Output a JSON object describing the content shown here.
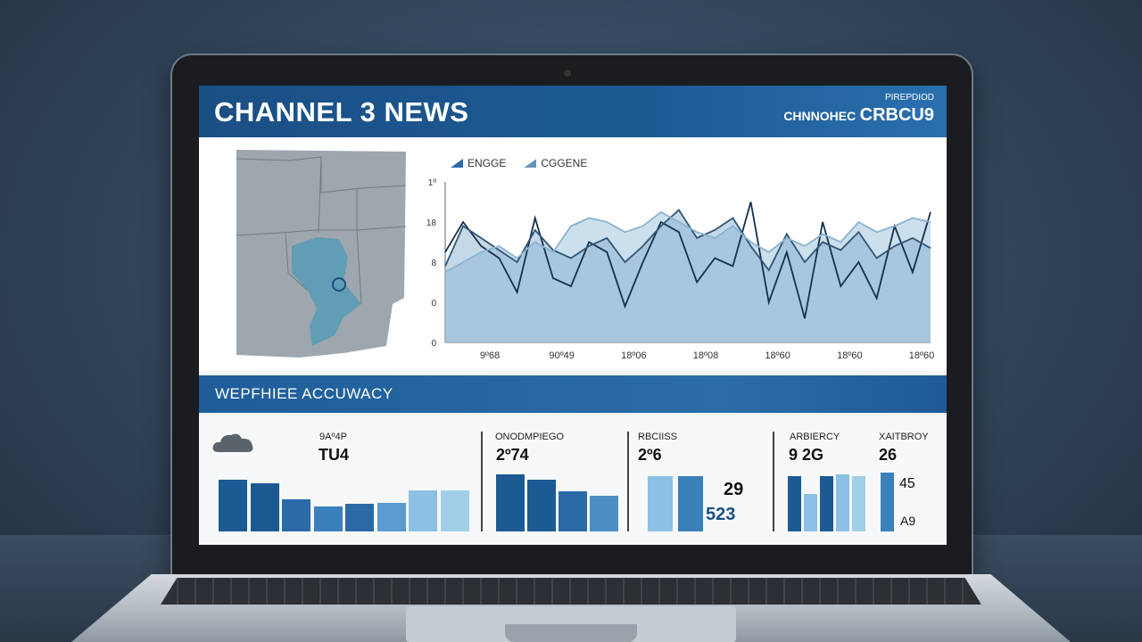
{
  "header": {
    "title": "CHANNEL 3 NEWS",
    "subtitle": "PIREPDIOD",
    "brand_a": "CHNNOHEC",
    "brand_b": "CRBCU9"
  },
  "map": {
    "marker_icon": "location-circle-icon"
  },
  "chart_data": {
    "type": "line",
    "legend": [
      {
        "label": "ENGGE",
        "color": "#2a6aa6"
      },
      {
        "label": "CGGENE",
        "color": "#6a93b8"
      }
    ],
    "y_ticks": [
      "1º",
      "18",
      "8",
      "0",
      "0"
    ],
    "x_ticks": [
      "9º68",
      "90º49",
      "18º06",
      "18º08",
      "18º60",
      "18º60",
      "18º60"
    ],
    "series": [
      {
        "color": "#14314f",
        "values": [
          45,
          60,
          48,
          42,
          25,
          62,
          32,
          28,
          50,
          45,
          18,
          40,
          60,
          55,
          30,
          42,
          38,
          70,
          20,
          45,
          12,
          60,
          28,
          40,
          22,
          58,
          35,
          65
        ]
      },
      {
        "color": "#2f5676",
        "values": [
          38,
          58,
          52,
          46,
          40,
          56,
          46,
          42,
          48,
          52,
          40,
          48,
          58,
          66,
          52,
          56,
          62,
          48,
          36,
          54,
          40,
          50,
          46,
          55,
          42,
          48,
          52,
          47
        ]
      },
      {
        "color": "#8bb3d0",
        "values": [
          35,
          40,
          45,
          48,
          42,
          50,
          45,
          58,
          62,
          60,
          55,
          58,
          65,
          60,
          55,
          52,
          58,
          50,
          45,
          52,
          48,
          54,
          50,
          60,
          55,
          58,
          62,
          60
        ]
      }
    ]
  },
  "section": {
    "title": "WEPFHIEE ACCUWACY"
  },
  "bottom": {
    "cloud_icon": "cloud-icon",
    "panel1": {
      "label": "9Aº4P",
      "value": "TU4",
      "bars": [
        58,
        54,
        36,
        28,
        31,
        32,
        46,
        46
      ],
      "colors": [
        "#1c5a94",
        "#1c5a94",
        "#2a6aa6",
        "#3a80bb",
        "#2a6aa6",
        "#5a9cd0",
        "#8cc0e4",
        "#a2cfe8"
      ]
    },
    "panel2": {
      "label": "ONODMPIEGO",
      "value": "2º74",
      "bars": [
        64,
        58,
        45,
        40
      ],
      "colors": [
        "#1c5a94",
        "#1c5a94",
        "#2a6aa6",
        "#4a8fc6"
      ]
    },
    "panel3": {
      "label": "RBCIISS",
      "value": "2º6",
      "bars": [
        62,
        62
      ],
      "colors": [
        "#8cc0e4",
        "#3a80bb"
      ],
      "overlay_top": "29",
      "overlay_bottom": "523"
    },
    "panel4": {
      "label": "ARBIERCY",
      "value": "9 2G",
      "bars": [
        62,
        42,
        62,
        64,
        62
      ],
      "colors": [
        "#1c5a94",
        "#8cc0e4",
        "#1c5a94",
        "#8cc0e4",
        "#a2cfe8"
      ]
    },
    "panel5": {
      "label": "XAITBROY",
      "value": "26",
      "bars": [
        66
      ],
      "colors": [
        "#3a80bb"
      ],
      "side_top": "45",
      "side_bottom": "A9"
    }
  }
}
